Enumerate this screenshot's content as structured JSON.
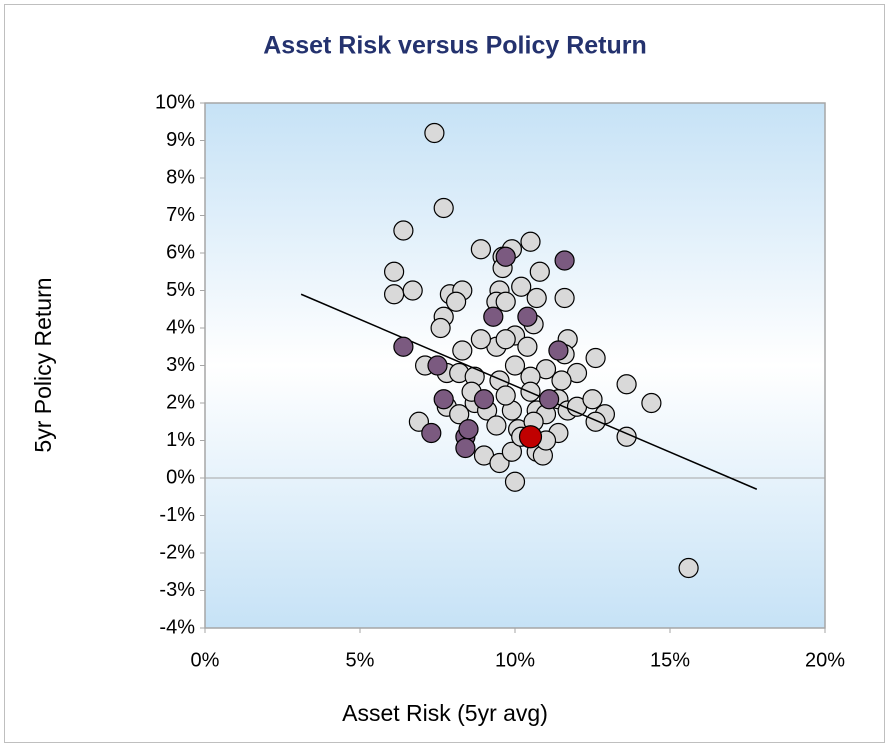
{
  "chart_data": {
    "type": "scatter",
    "title": "Asset Risk versus Policy Return",
    "xlabel": "Asset Risk (5yr avg)",
    "ylabel": "5yr Policy Return",
    "xlim": [
      0,
      20
    ],
    "ylim": [
      -4,
      10
    ],
    "xticks": [
      {
        "value": 0,
        "label": "0%"
      },
      {
        "value": 5,
        "label": "5%"
      },
      {
        "value": 10,
        "label": "10%"
      },
      {
        "value": 15,
        "label": "15%"
      },
      {
        "value": 20,
        "label": "20%"
      }
    ],
    "yticks": [
      {
        "value": -4,
        "label": "-4%"
      },
      {
        "value": -3,
        "label": "-3%"
      },
      {
        "value": -2,
        "label": "-2%"
      },
      {
        "value": -1,
        "label": "-1%"
      },
      {
        "value": 0,
        "label": "0%"
      },
      {
        "value": 1,
        "label": "1%"
      },
      {
        "value": 2,
        "label": "2%"
      },
      {
        "value": 3,
        "label": "3%"
      },
      {
        "value": 4,
        "label": "4%"
      },
      {
        "value": 5,
        "label": "5%"
      },
      {
        "value": 6,
        "label": "6%"
      },
      {
        "value": 7,
        "label": "7%"
      },
      {
        "value": 8,
        "label": "8%"
      },
      {
        "value": 9,
        "label": "9%"
      },
      {
        "value": 10,
        "label": "10%"
      }
    ],
    "trendline": {
      "x": [
        3.1,
        17.8
      ],
      "y": [
        4.9,
        -0.3
      ],
      "color": "#000000"
    },
    "series": [
      {
        "color": "#d9d9d9",
        "x": [
          7.4,
          7.7,
          6.4,
          6.1,
          6.1,
          6.7,
          7.9,
          8.3,
          8.1,
          7.7,
          7.6,
          10.5,
          9.9,
          8.9,
          9.6,
          10.2,
          10.8,
          9.6,
          9.5,
          9.4,
          10.7,
          11.6,
          9.7,
          10.0,
          10.4,
          9.4,
          8.9,
          9.7,
          10.6,
          11.7,
          11.6,
          11.0,
          12.6,
          12.0,
          7.1,
          7.8,
          8.3,
          8.2,
          8.7,
          9.5,
          10.0,
          10.5,
          11.5,
          11.4,
          11.7,
          12.0,
          12.5,
          12.9,
          12.6,
          13.6,
          14.4,
          13.6,
          7.8,
          8.2,
          8.7,
          9.1,
          9.9,
          10.7,
          11.0,
          11.4,
          10.1,
          9.4,
          6.9,
          9.0,
          9.5,
          9.9,
          10.7,
          10.9,
          10.0,
          15.6,
          11.0,
          8.6,
          10.5,
          9.7,
          10.6,
          10.2
        ],
        "values": [
          9.2,
          7.2,
          6.6,
          5.5,
          4.9,
          5.0,
          4.9,
          5.0,
          4.7,
          4.3,
          4.0,
          6.3,
          6.1,
          6.1,
          5.9,
          5.1,
          5.5,
          5.6,
          5.0,
          4.7,
          4.8,
          4.8,
          4.7,
          3.8,
          3.5,
          3.5,
          3.7,
          3.7,
          4.1,
          3.7,
          3.3,
          2.9,
          3.2,
          2.8,
          3.0,
          2.8,
          3.4,
          2.8,
          2.7,
          2.6,
          3.0,
          2.7,
          2.6,
          2.1,
          1.8,
          1.9,
          2.1,
          1.7,
          1.5,
          2.5,
          2.0,
          1.1,
          1.9,
          1.7,
          2.0,
          1.8,
          1.8,
          1.8,
          1.7,
          1.2,
          1.3,
          1.4,
          1.5,
          0.6,
          0.4,
          0.7,
          0.7,
          0.6,
          -0.1,
          -2.4,
          1.0,
          2.3,
          2.3,
          2.2,
          1.5,
          1.1
        ]
      },
      {
        "color": "#7b5a80",
        "x": [
          6.4,
          9.7,
          11.6,
          9.3,
          10.4,
          7.5,
          11.4,
          9.0,
          7.7,
          11.1,
          7.3,
          8.4,
          8.5,
          8.4
        ],
        "values": [
          3.5,
          5.9,
          5.8,
          4.3,
          4.3,
          3.0,
          3.4,
          2.1,
          2.1,
          2.1,
          1.2,
          1.1,
          1.3,
          0.8
        ]
      },
      {
        "color": "#c00000",
        "x": [
          10.5
        ],
        "values": [
          1.1
        ]
      }
    ]
  }
}
